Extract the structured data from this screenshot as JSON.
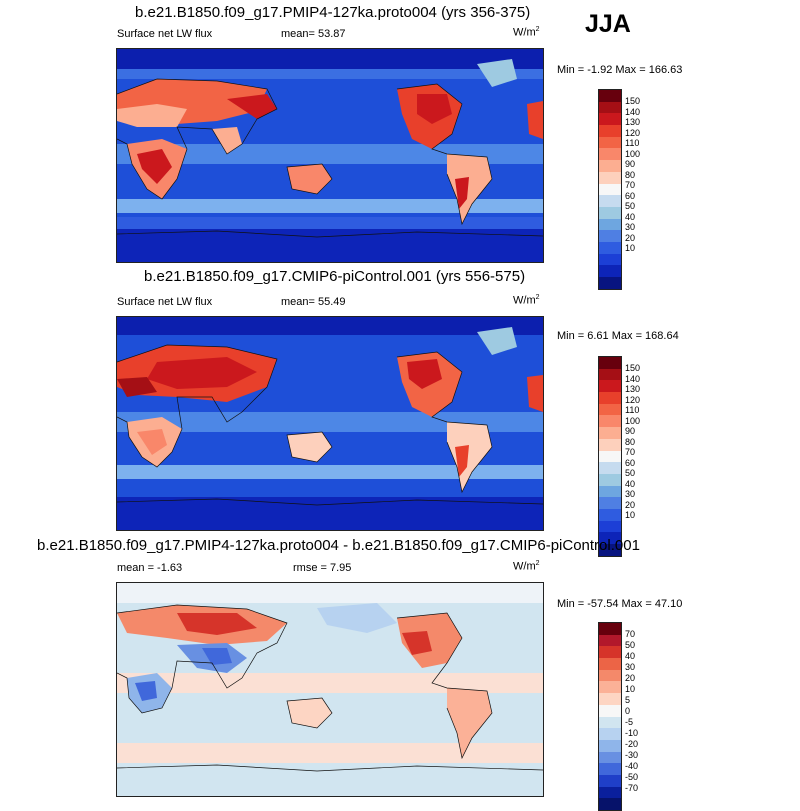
{
  "season": "JJA",
  "panels": [
    {
      "id": "proto",
      "title": "b.e21.B1850.f09_g17.PMIP4-127ka.proto004 (yrs 356-375)",
      "left_label": "Surface net LW flux",
      "center_label": "mean=  53.87",
      "units": "W/m",
      "units_sup": "2",
      "minmax": "Min =  -1.92 Max = 166.63",
      "colorbar_labels": [
        "150",
        "140",
        "130",
        "120",
        "110",
        "100",
        "90",
        "80",
        "70",
        "60",
        "50",
        "40",
        "30",
        "20",
        "10"
      ]
    },
    {
      "id": "control",
      "title": "b.e21.B1850.f09_g17.CMIP6-piControl.001 (yrs 556-575)",
      "left_label": "Surface net LW flux",
      "center_label": "mean=  55.49",
      "units": "W/m",
      "units_sup": "2",
      "minmax": "Min =  6.61 Max = 168.64",
      "colorbar_labels": [
        "150",
        "140",
        "130",
        "120",
        "110",
        "100",
        "90",
        "80",
        "70",
        "60",
        "50",
        "40",
        "30",
        "20",
        "10"
      ]
    },
    {
      "id": "diff",
      "title": "b.e21.B1850.f09_g17.PMIP4-127ka.proto004 - b.e21.B1850.f09_g17.CMIP6-piControl.001",
      "left_label": "mean =  -1.63",
      "center_label": "rmse =  7.95",
      "units": "W/m",
      "units_sup": "2",
      "minmax": "Min = -57.54 Max =  47.10",
      "colorbar_labels": [
        "70",
        "50",
        "40",
        "30",
        "20",
        "10",
        "5",
        "0",
        "-5",
        "-10",
        "-20",
        "-30",
        "-40",
        "-50",
        "-70"
      ]
    }
  ],
  "colors": {
    "abs_scale": [
      "#67000d",
      "#a50f15",
      "#cb181d",
      "#e8402b",
      "#f26445",
      "#f9876a",
      "#fcae91",
      "#fdd0bc",
      "#f7f7f7",
      "#c6dbef",
      "#9ecae1",
      "#6ea6e0",
      "#4f7fe3",
      "#2f5ce0",
      "#1c3fd6",
      "#0d24b8",
      "#081480"
    ],
    "diff_scale": [
      "#67000d",
      "#b2182b",
      "#d6342a",
      "#ec6446",
      "#f4896a",
      "#fbb197",
      "#fdd5c3",
      "#f7f7f7",
      "#d1e5f0",
      "#b7d2f0",
      "#8fb5ea",
      "#6890e2",
      "#4068db",
      "#1f3fc8",
      "#0a1f9c",
      "#06126a"
    ]
  }
}
